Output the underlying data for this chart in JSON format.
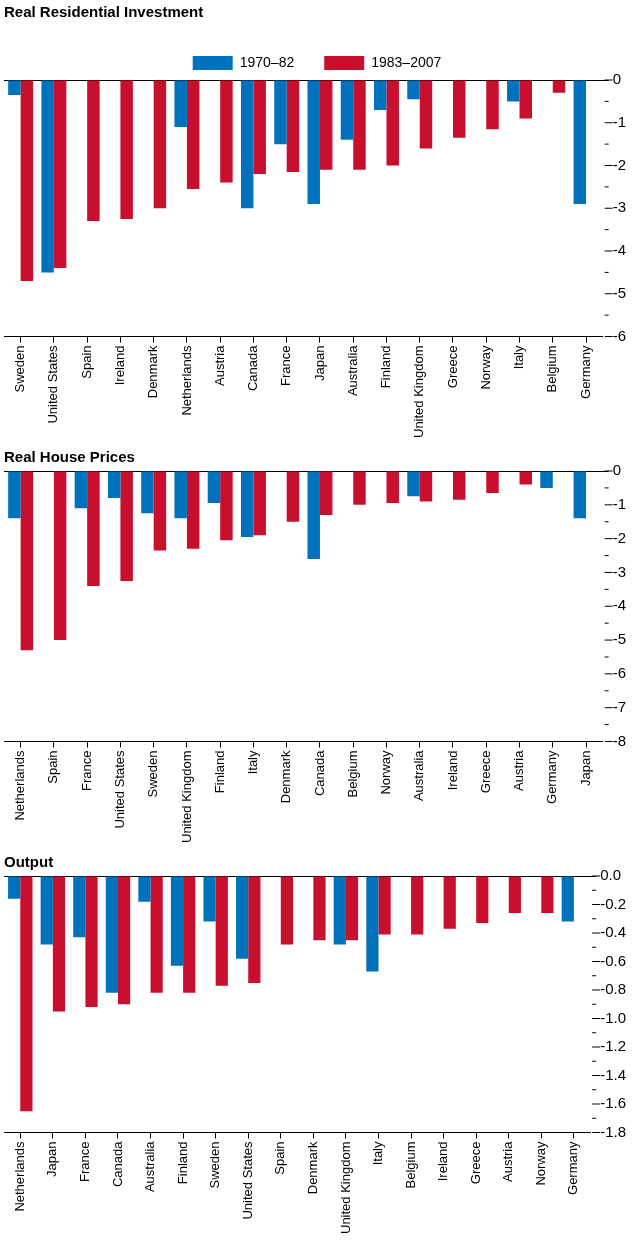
{
  "chart_data": [
    {
      "type": "bar",
      "title": "Real Residential Investment",
      "legend": "top",
      "categories": [
        "Sweden",
        "United States",
        "Spain",
        "Ireland",
        "Denmark",
        "Netherlands",
        "Austria",
        "Canada",
        "France",
        "Japan",
        "Australia",
        "Finland",
        "United Kingdom",
        "Greece",
        "Norway",
        "Italy",
        "Belgium",
        "Germany"
      ],
      "series": [
        {
          "name": "1970–82",
          "color": "#0072bc",
          "values": [
            -0.35,
            -4.5,
            null,
            null,
            null,
            -1.1,
            null,
            -3.0,
            -1.5,
            -2.9,
            -1.4,
            -0.7,
            -0.45,
            null,
            null,
            -0.5,
            null,
            -2.9
          ]
        },
        {
          "name": "1983–2007",
          "color": "#c8102e",
          "values": [
            -4.7,
            -4.4,
            -3.3,
            -3.25,
            -3.0,
            -2.55,
            -2.4,
            -2.2,
            -2.15,
            -2.1,
            -2.1,
            -2.0,
            -1.6,
            -1.35,
            -1.15,
            -0.9,
            -0.3,
            null
          ]
        }
      ],
      "ylim": [
        -6,
        0
      ],
      "yticks": [
        0,
        {
          "value": -0.5,
          "label": null
        },
        -1,
        {
          "value": -1.5,
          "label": null
        },
        -2,
        {
          "value": -2.5,
          "label": null
        },
        -3,
        {
          "value": -3.5,
          "label": null
        },
        -4,
        {
          "value": -4.5,
          "label": null
        },
        -5,
        {
          "value": -5.5,
          "label": null
        },
        -6
      ]
    },
    {
      "type": "bar",
      "title": "Real House Prices",
      "categories": [
        "Netherlands",
        "Spain",
        "France",
        "United States",
        "Sweden",
        "United Kingdom",
        "Finland",
        "Italy",
        "Denmark",
        "Canada",
        "Belgium",
        "Norway",
        "Australia",
        "Ireland",
        "Greece",
        "Austria",
        "Germany",
        "Japan"
      ],
      "series": [
        {
          "color": "#0072bc",
          "values": [
            -1.4,
            null,
            -1.1,
            -0.8,
            -1.25,
            -1.4,
            -0.95,
            -1.95,
            null,
            -2.6,
            null,
            null,
            -0.75,
            null,
            null,
            null,
            -0.5,
            -1.4
          ]
        },
        {
          "color": "#c8102e",
          "values": [
            -5.3,
            -5.0,
            -3.4,
            -3.25,
            -2.35,
            -2.3,
            -2.05,
            -1.9,
            -1.5,
            -1.3,
            -1.0,
            -0.95,
            -0.9,
            -0.85,
            -0.65,
            -0.4,
            null,
            null
          ]
        }
      ],
      "ylim": [
        -8,
        0
      ],
      "yticks": [
        0,
        {
          "value": -0.5,
          "label": null
        },
        -1,
        {
          "value": -1.5,
          "label": null
        },
        -2,
        {
          "value": -2.5,
          "label": null
        },
        -3,
        {
          "value": -3.5,
          "label": null
        },
        -4,
        {
          "value": -4.5,
          "label": null
        },
        -5,
        {
          "value": -5.5,
          "label": null
        },
        -6,
        {
          "value": -6.5,
          "label": null
        },
        -7,
        {
          "value": -7.5,
          "label": null
        },
        -8
      ]
    },
    {
      "type": "bar",
      "title": "Output",
      "categories": [
        "Netherlands",
        "Japan",
        "France",
        "Canada",
        "Australia",
        "Finland",
        "Sweden",
        "United States",
        "Spain",
        "Denmark",
        "United Kingdom",
        "Italy",
        "Belgium",
        "Ireland",
        "Greece",
        "Austria",
        "Norway",
        "Germany"
      ],
      "series": [
        {
          "color": "#0072bc",
          "values": [
            -0.16,
            -0.48,
            -0.43,
            -0.82,
            -0.18,
            -0.63,
            -0.32,
            -0.58,
            null,
            null,
            -0.48,
            -0.67,
            null,
            null,
            null,
            null,
            null,
            -0.32
          ]
        },
        {
          "color": "#c8102e",
          "values": [
            -1.65,
            -0.95,
            -0.92,
            -0.9,
            -0.82,
            -0.82,
            -0.77,
            -0.75,
            -0.48,
            -0.45,
            -0.45,
            -0.41,
            -0.41,
            -0.37,
            -0.33,
            -0.26,
            -0.26,
            null
          ]
        }
      ],
      "ylim": [
        -1.8,
        0
      ],
      "yticks": [
        {
          "value": 0,
          "label": "0.0"
        },
        {
          "value": -0.1,
          "label": null
        },
        {
          "value": -0.2,
          "label": "-0.2"
        },
        {
          "value": -0.3,
          "label": null
        },
        {
          "value": -0.4,
          "label": "-0.4"
        },
        {
          "value": -0.5,
          "label": null
        },
        {
          "value": -0.6,
          "label": "-0.6"
        },
        {
          "value": -0.7,
          "label": null
        },
        {
          "value": -0.8,
          "label": "-0.8"
        },
        {
          "value": -0.9,
          "label": null
        },
        {
          "value": -1.0,
          "label": "-1.0"
        },
        {
          "value": -1.1,
          "label": null
        },
        {
          "value": -1.2,
          "label": "-1.2"
        },
        {
          "value": -1.3,
          "label": null
        },
        {
          "value": -1.4,
          "label": "-1.4"
        },
        {
          "value": -1.5,
          "label": null
        },
        {
          "value": -1.6,
          "label": "-1.6"
        },
        {
          "value": -1.7,
          "label": null
        },
        {
          "value": -1.8,
          "label": "-1.8"
        }
      ]
    }
  ]
}
